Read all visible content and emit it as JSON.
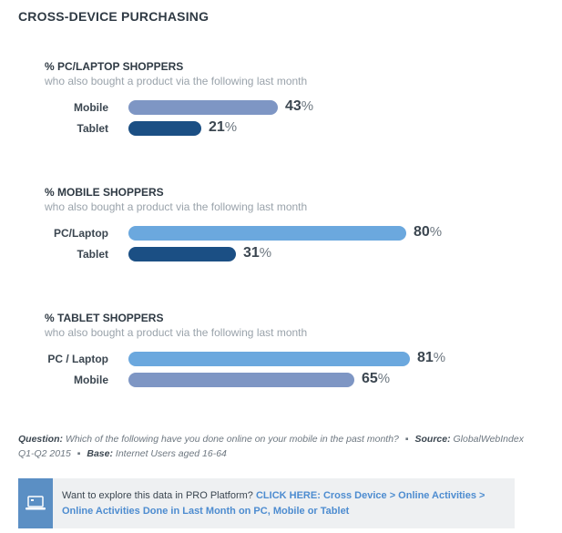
{
  "title": "CROSS-DEVICE PURCHASING",
  "colors": {
    "pc_laptop": "#6ba8de",
    "mobile": "#7e96c4",
    "tablet": "#1b4f84"
  },
  "chart_data": [
    {
      "type": "bar",
      "title": "% PC/LAPTOP SHOPPERS",
      "subtitle": "who also bought a product via the following last month",
      "categories": [
        "Mobile",
        "Tablet"
      ],
      "values": [
        43,
        21
      ],
      "value_labels": [
        "43",
        "21"
      ],
      "unit": "%",
      "bar_colors": [
        "#7e96c4",
        "#1b4f84"
      ]
    },
    {
      "type": "bar",
      "title": "% MOBILE SHOPPERS",
      "subtitle": "who also bought a product via the following last month",
      "categories": [
        "PC/Laptop",
        "Tablet"
      ],
      "values": [
        80,
        31
      ],
      "value_labels": [
        "80",
        "31"
      ],
      "unit": "%",
      "bar_colors": [
        "#6ba8de",
        "#1b4f84"
      ]
    },
    {
      "type": "bar",
      "title": "% TABLET SHOPPERS",
      "subtitle": "who also bought a product via the following last month",
      "categories": [
        "PC / Laptop",
        "Mobile"
      ],
      "values": [
        81,
        65
      ],
      "value_labels": [
        "81",
        "65"
      ],
      "unit": "%",
      "bar_colors": [
        "#6ba8de",
        "#7e96c4"
      ]
    }
  ],
  "note": {
    "question_label": "Question:",
    "question_text": "Which of the following have you done online on your mobile in the past month?",
    "separator": "▪",
    "source_label": "Source:",
    "source_text": "GlobalWebIndex Q1-Q2 2015",
    "base_label": "Base:",
    "base_text": "Internet Users aged 16-64"
  },
  "promo": {
    "icon": "laptop-icon",
    "lead": "Want to explore this data in PRO Platform?",
    "link_label": "CLICK HERE:",
    "link_path": "Cross Device > Online Activities > Online Activities Done in Last Month on PC, Mobile or Tablet"
  }
}
